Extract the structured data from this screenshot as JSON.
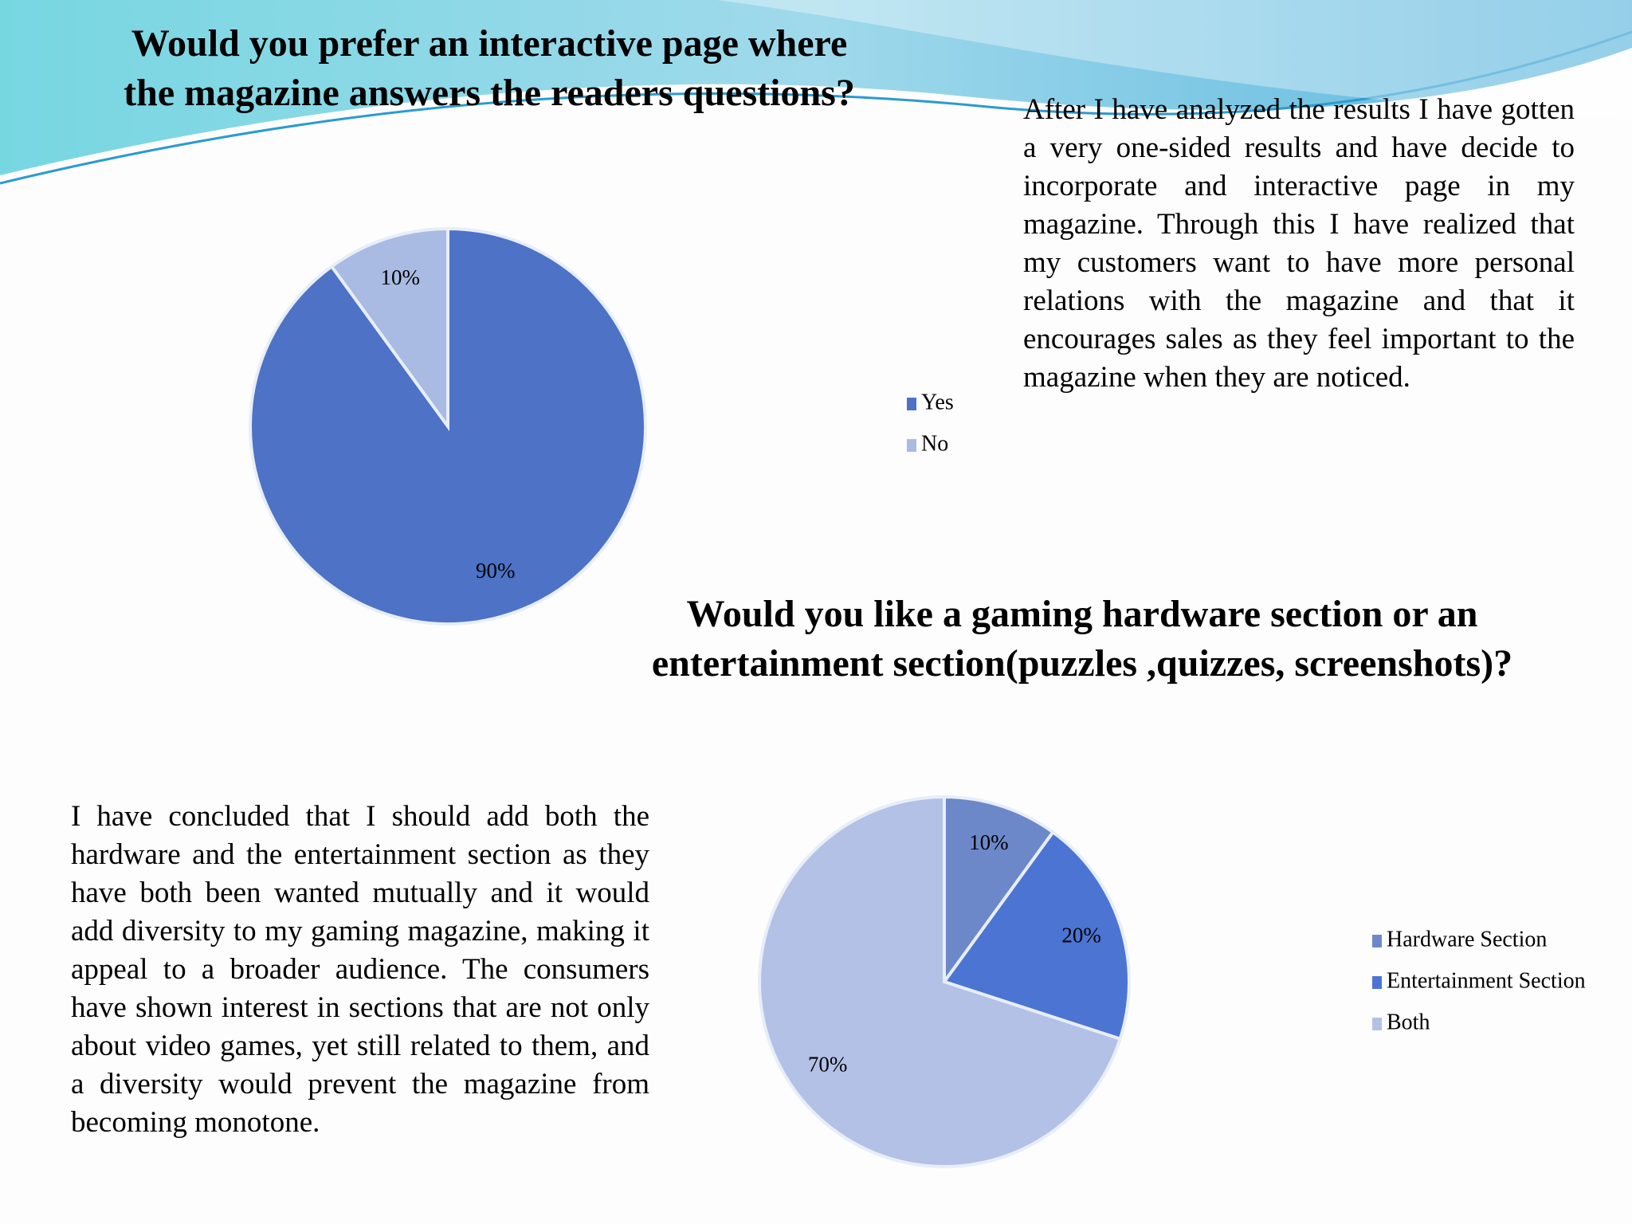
{
  "chart_data": [
    {
      "type": "pie",
      "title": "Would you prefer an interactive page where the magazine answers the readers questions?",
      "categories": [
        "Yes",
        "No"
      ],
      "values": [
        90,
        10
      ],
      "value_labels": [
        "90%",
        "10%"
      ],
      "colors": [
        "#4d72c6",
        "#a9bae3"
      ]
    },
    {
      "type": "pie",
      "title": "Would you like a gaming hardware section or an entertainment section(puzzles ,quizzes, screenshots)?",
      "categories": [
        "Hardware Section",
        "Entertainment Section",
        "Both"
      ],
      "values": [
        10,
        20,
        70
      ],
      "value_labels": [
        "10%",
        "20%",
        "70%"
      ],
      "colors": [
        "#6d88c9",
        "#4c74d2",
        "#b3c1e6"
      ]
    }
  ],
  "paragraphs": [
    "After I have analyzed the results I have gotten a very one-sided results and have decide to incorporate and interactive page in my magazine. Through this I have realized that my customers want to have more personal relations with the magazine and that it encourages sales as they feel important to the magazine when they are noticed.",
    "I have concluded that I should add both the hardware and the entertainment section as they have both been wanted mutually and it would add diversity to my gaming magazine, making it appeal to a broader audience. The consumers have shown interest in sections that are not only about video games, yet still related to them, and a diversity would prevent the magazine from becoming monotone."
  ]
}
